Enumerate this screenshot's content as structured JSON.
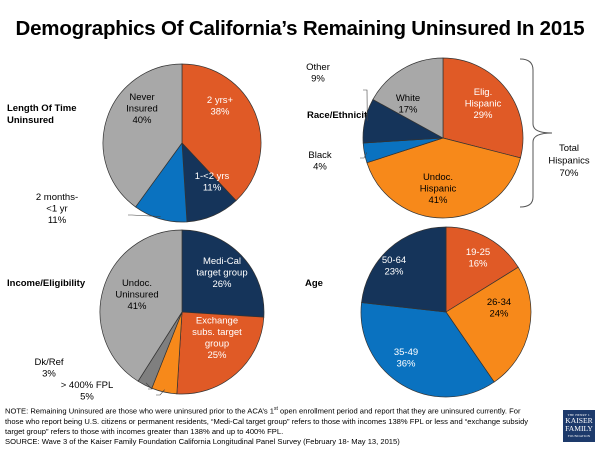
{
  "title": "Demographics Of California’s Remaining Uninsured In 2015",
  "colors": {
    "orange_red": "#E05A26",
    "navy": "#15345A",
    "blue": "#0A72C0",
    "gray": "#A8A8A8",
    "dark_gray": "#7F7F7F",
    "orange": "#F7891A"
  },
  "chart_data": [
    {
      "type": "pie",
      "title": "Length Of Time Uninsured",
      "title_lines": [
        "Length Of Time",
        "Uninsured"
      ],
      "slices": [
        {
          "label": "2 yrs+",
          "value": 38,
          "color": "#E05A26",
          "text_color": "#ffffff"
        },
        {
          "label": "1-<2 yrs",
          "value": 11,
          "color": "#15345A",
          "text_color": "#ffffff"
        },
        {
          "label": "2 months-<1 yr",
          "value": 11,
          "color": "#0A72C0",
          "text_color": "#000000"
        },
        {
          "label": "Never Insured",
          "value": 40,
          "color": "#A8A8A8",
          "text_color": "#000000"
        }
      ]
    },
    {
      "type": "pie",
      "title": "Race/Ethnicity",
      "title_lines": [
        "Race/Ethnicity"
      ],
      "slices": [
        {
          "label": "Elig. Hispanic",
          "value": 29,
          "color": "#E05A26",
          "text_color": "#ffffff"
        },
        {
          "label": "Undoc. Hispanic",
          "value": 41,
          "color": "#F7891A",
          "text_color": "#000000"
        },
        {
          "label": "Black",
          "value": 4,
          "color": "#0A72C0",
          "text_color": "#000000"
        },
        {
          "label": "Other",
          "value": 9,
          "color": "#15345A",
          "text_color": "#000000"
        },
        {
          "label": "White",
          "value": 17,
          "color": "#A8A8A8",
          "text_color": "#000000"
        }
      ],
      "annotation": {
        "lines": [
          "Total",
          "Hispanics",
          "70%"
        ]
      }
    },
    {
      "type": "pie",
      "title": "Income/Eligibility",
      "title_lines": [
        "Income/Eligibility"
      ],
      "slices": [
        {
          "label": "Medi-Cal target group",
          "value": 26,
          "color": "#15345A",
          "text_color": "#ffffff"
        },
        {
          "label": "Exchange subs. target group",
          "value": 25,
          "color": "#E05A26",
          "text_color": "#ffffff"
        },
        {
          "label": "> 400% FPL",
          "value": 5,
          "color": "#F7891A",
          "text_color": "#000000"
        },
        {
          "label": "Dk/Ref",
          "value": 3,
          "color": "#7F7F7F",
          "text_color": "#000000"
        },
        {
          "label": "Undoc. Uninsured",
          "value": 41,
          "color": "#A8A8A8",
          "text_color": "#000000"
        }
      ]
    },
    {
      "type": "pie",
      "title": "Age",
      "title_lines": [
        "Age"
      ],
      "slices": [
        {
          "label": "19-25",
          "value": 16,
          "color": "#E05A26",
          "text_color": "#ffffff"
        },
        {
          "label": "26-34",
          "value": 24,
          "color": "#F7891A",
          "text_color": "#000000"
        },
        {
          "label": "35-49",
          "value": 36,
          "color": "#0A72C0",
          "text_color": "#ffffff"
        },
        {
          "label": "50-64",
          "value": 23,
          "color": "#15345A",
          "text_color": "#ffffff"
        }
      ]
    }
  ],
  "slice_text": [
    [
      [
        "2 yrs+",
        "38%"
      ],
      [
        "1-<2 yrs",
        "11%"
      ],
      [
        "2 months-",
        "<1 yr",
        "11%"
      ],
      [
        "Never",
        "Insured",
        "40%"
      ]
    ],
    [
      [
        "Elig.",
        "Hispanic",
        "29%"
      ],
      [
        "Undoc.",
        "Hispanic",
        "41%"
      ],
      [
        "Black",
        "4%"
      ],
      [
        "Other",
        "9%"
      ],
      [
        "White",
        "17%"
      ]
    ],
    [
      [
        "Medi-Cal",
        "target group",
        "26%"
      ],
      [
        "Exchange",
        "subs. target",
        "group",
        "25%"
      ],
      [
        "> 400% FPL",
        "5%"
      ],
      [
        "Dk/Ref",
        "3%"
      ],
      [
        "Undoc.",
        "Uninsured",
        "41%"
      ]
    ],
    [
      [
        "19-25",
        "16%"
      ],
      [
        "26-34",
        "24%"
      ],
      [
        "35-49",
        "36%"
      ],
      [
        "50-64",
        "23%"
      ]
    ]
  ],
  "note": {
    "line1_pre": "NOTE: Remaining Uninsured are those who were uninsured prior to the ACA’s 1",
    "line1_sup": "st",
    "line1_post": " open enrollment period and report that they are uninsured currently. For those who report being U.S. citizens or permanent residents, “Medi-Cal target group” refers to those with incomes 138% FPL or less and “exchange subsidy target group” refers to those with incomes greater than 138% and up to 400% FPL.",
    "source": "SOURCE: Wave 3 of the Kaiser Family Foundation California Longitudinal Panel Survey (February 18- May 13, 2015)"
  },
  "logo": {
    "small": "THE HENRY J.",
    "line1": "KAISER",
    "line2": "FAMILY",
    "small2": "FOUNDATION"
  }
}
